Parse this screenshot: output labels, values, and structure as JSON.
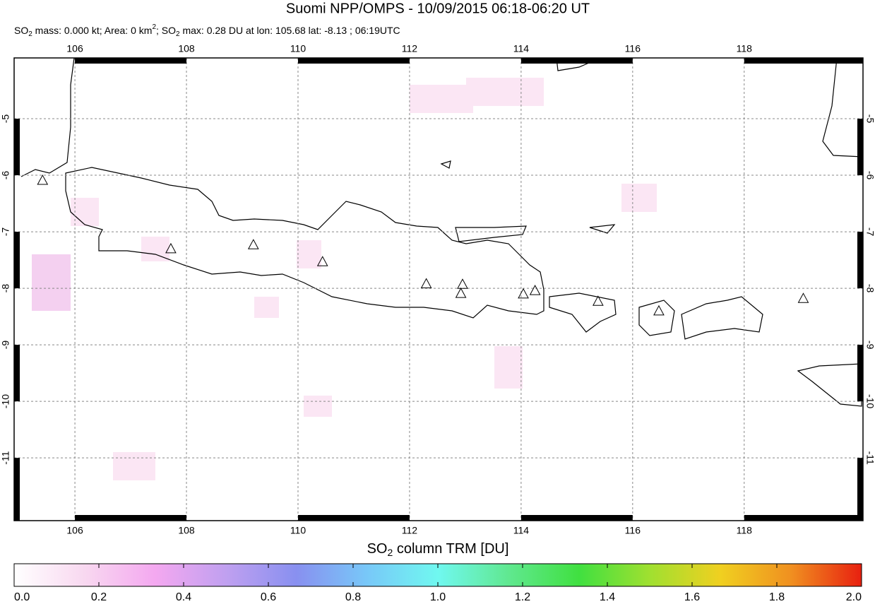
{
  "chart_data": {
    "type": "map",
    "title": "Suomi NPP/OMPS - 10/09/2015 06:18-06:20 UT",
    "subtitle": [
      "SO",
      "2",
      " mass: 0.000 kt; Area: 0 km",
      "2",
      "; SO",
      "2",
      " max: 0.28 DU at lon: 105.68 lat: -8.13 ; 06:19UTC"
    ],
    "xlim": [
      104.91,
      120.13
    ],
    "ylim": [
      -12.11,
      -3.925
    ],
    "xticks": [
      106,
      108,
      110,
      112,
      114,
      116,
      118
    ],
    "yticks": [
      -5,
      -6,
      -7,
      -8,
      -9,
      -10,
      -11
    ],
    "grid": true,
    "volcanoes": {
      "lon": [
        105.42,
        107.72,
        109.2,
        110.44,
        112.3,
        112.95,
        112.92,
        114.04,
        114.25,
        115.38,
        116.47,
        119.06
      ],
      "lat": [
        -6.1,
        -7.31,
        -7.24,
        -7.54,
        -7.93,
        -7.94,
        -8.1,
        -8.11,
        -8.05,
        -8.24,
        -8.41,
        -8.19
      ]
    },
    "colorbar": {
      "label": [
        "SO",
        "2",
        " column TRM [DU]"
      ],
      "range": [
        0,
        2
      ],
      "ticks": [
        {
          "value": 0,
          "label": "0.0"
        },
        0.2,
        0.4,
        0.6,
        0.8,
        {
          "value": 1,
          "label": "1.0"
        },
        1.2,
        1.4,
        1.6,
        1.8,
        {
          "value": 2,
          "label": "2.0"
        }
      ],
      "colors": [
        "#ffffff",
        "#f8d8f0",
        "#f4a8f0",
        "#c0a0f0",
        "#8890f0",
        "#78c8f8",
        "#70f8f0",
        "#60e890",
        "#40e040",
        "#a0e030",
        "#f0d020",
        "#f09020",
        "#e82010"
      ]
    }
  }
}
